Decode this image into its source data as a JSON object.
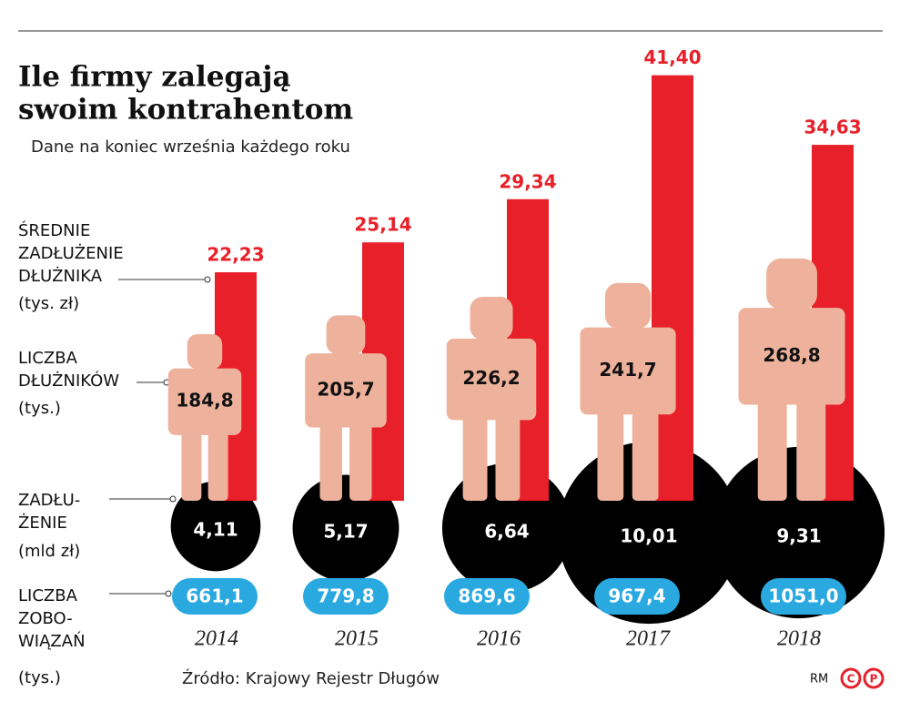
{
  "chart_data": {
    "type": "pictogram",
    "title": [
      "Ile firmy zalegają",
      "swoim kontrahentom"
    ],
    "subtitle": "Dane na koniec września każdego roku",
    "categories": [
      "2014",
      "2015",
      "2016",
      "2017",
      "2018"
    ],
    "ylim": [
      0,
      45
    ],
    "series": [
      {
        "label": [
          "ŚREDNIE",
          "ZADŁUŻENIE",
          "DŁUŻNIKA"
        ],
        "unit": "(tys. zł)",
        "shape": "bar",
        "color": "#e8202a",
        "values": [
          22.23,
          25.14,
          29.34,
          41.4,
          34.63
        ],
        "value_labels": [
          "22,23",
          "25,14",
          "29,34",
          "41,40",
          "34,63"
        ]
      },
      {
        "label": [
          "LICZBA",
          "DŁUŻNIKÓW"
        ],
        "unit": "(tys.)",
        "shape": "person",
        "color": "#eeb29c",
        "values": [
          184.8,
          205.7,
          226.2,
          241.7,
          268.8
        ],
        "value_labels": [
          "184,8",
          "205,7",
          "226,2",
          "241,7",
          "268,8"
        ]
      },
      {
        "label": [
          "ZADŁU-",
          "ŻENIE"
        ],
        "unit": "(mld zł)",
        "shape": "circle",
        "color": "#000000",
        "values": [
          4.11,
          5.17,
          6.64,
          10.01,
          9.31
        ],
        "value_labels": [
          "4,11",
          "5,17",
          "6,64",
          "10,01",
          "9,31"
        ]
      },
      {
        "label": [
          "LICZBA",
          "ZOBO-",
          "WIĄZAŃ"
        ],
        "unit": "(tys.)",
        "shape": "pill",
        "color": "#2aa8e0",
        "values": [
          661.1,
          779.8,
          869.6,
          967.4,
          1051.0
        ],
        "value_labels": [
          "661,1",
          "779,8",
          "869,6",
          "967,4",
          "1051,0"
        ]
      }
    ],
    "source": "Źródło: Krajowy Rejestr Długów",
    "credit": "RM",
    "logo_letters": [
      "C",
      "P"
    ]
  }
}
